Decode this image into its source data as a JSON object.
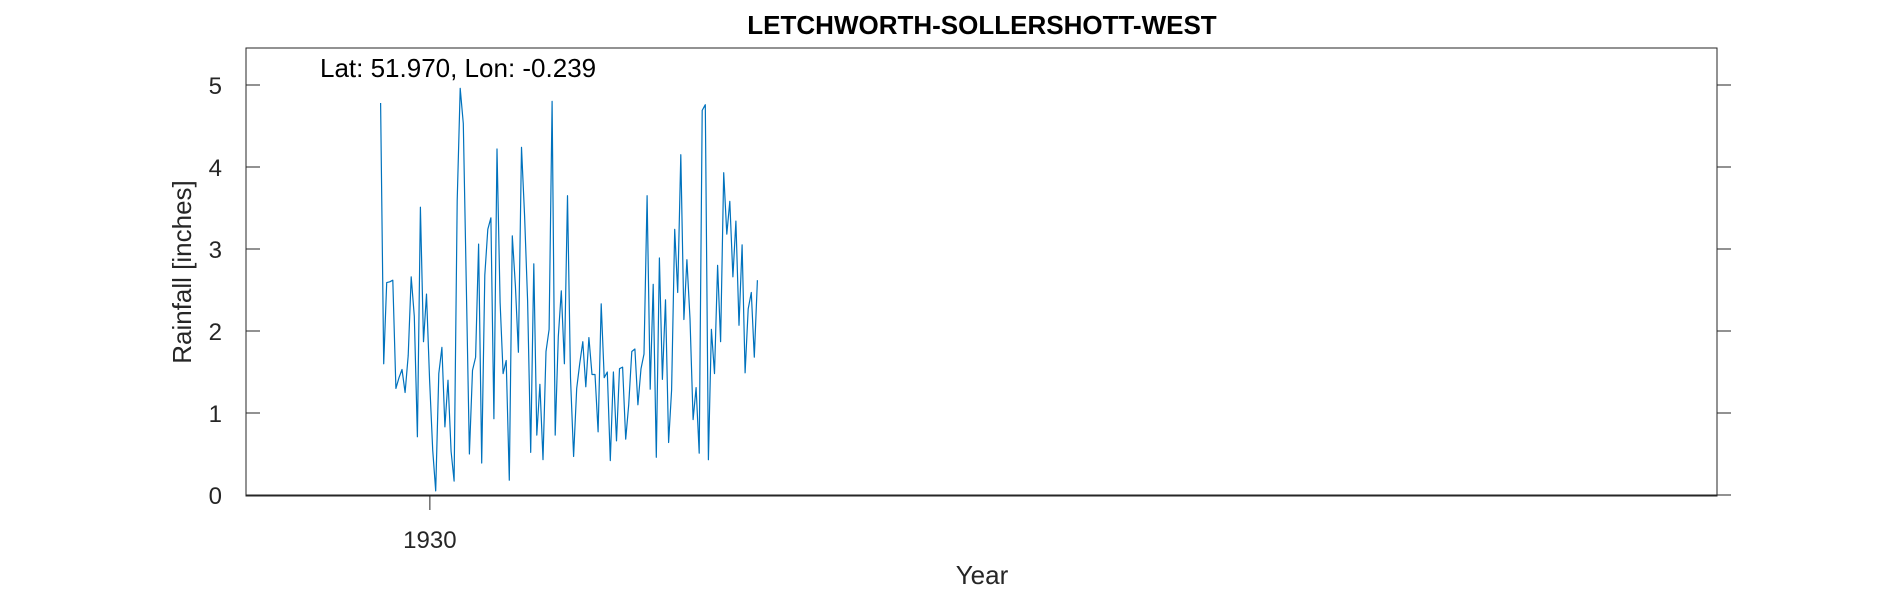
{
  "chart_data": {
    "type": "line",
    "title": "LETCHWORTH-SOLLERSHOTT-WEST",
    "xlabel": "Year",
    "ylabel": "Rainfall [inches]",
    "annotation": "Lat: 51.970, Lon: -0.239",
    "xlim": [
      1925,
      1965
    ],
    "ylim": [
      0,
      5.45
    ],
    "xticks": [
      1930
    ],
    "xtick_labels": [
      "1930"
    ],
    "yticks": [
      0,
      1,
      2,
      3,
      4,
      5
    ],
    "ytick_labels": [
      "0",
      "1",
      "2",
      "3",
      "4",
      "5"
    ],
    "grid": false,
    "line_color": "#0072BD",
    "series": [
      {
        "name": "Rainfall",
        "x_start": 1928.66,
        "x_step": 0.0833,
        "values": [
          4.78,
          1.6,
          2.59,
          2.6,
          2.62,
          1.3,
          1.43,
          1.53,
          1.25,
          1.7,
          2.66,
          2.18,
          0.71,
          3.51,
          1.87,
          2.45,
          1.4,
          0.55,
          0.05,
          1.48,
          1.8,
          0.83,
          1.4,
          0.53,
          0.17,
          3.59,
          4.96,
          4.53,
          2.5,
          0.5,
          1.52,
          1.68,
          3.06,
          0.39,
          2.68,
          3.24,
          3.38,
          0.93,
          4.22,
          2.35,
          1.48,
          1.64,
          0.18,
          3.16,
          2.55,
          1.74,
          4.24,
          3.4,
          2.37,
          0.52,
          2.82,
          0.73,
          1.35,
          0.43,
          1.75,
          2.02,
          4.8,
          0.73,
          1.93,
          2.49,
          1.6,
          3.65,
          1.43,
          0.47,
          1.3,
          1.6,
          1.87,
          1.32,
          1.92,
          1.47,
          1.47,
          0.77,
          2.33,
          1.43,
          1.5,
          0.42,
          1.5,
          0.66,
          1.54,
          1.56,
          0.68,
          1.1,
          1.75,
          1.78,
          1.1,
          1.54,
          1.72,
          3.65,
          1.29,
          2.57,
          0.46,
          2.89,
          1.41,
          2.38,
          0.64,
          1.28,
          3.24,
          2.47,
          4.15,
          2.14,
          2.87,
          2.15,
          0.92,
          1.31,
          0.51,
          4.69,
          4.76,
          0.43,
          2.02,
          1.48,
          2.8,
          1.87,
          3.93,
          3.18,
          3.58,
          2.66,
          3.34,
          2.07,
          3.05,
          1.49,
          2.27,
          2.47,
          1.68,
          2.62
        ]
      }
    ]
  }
}
